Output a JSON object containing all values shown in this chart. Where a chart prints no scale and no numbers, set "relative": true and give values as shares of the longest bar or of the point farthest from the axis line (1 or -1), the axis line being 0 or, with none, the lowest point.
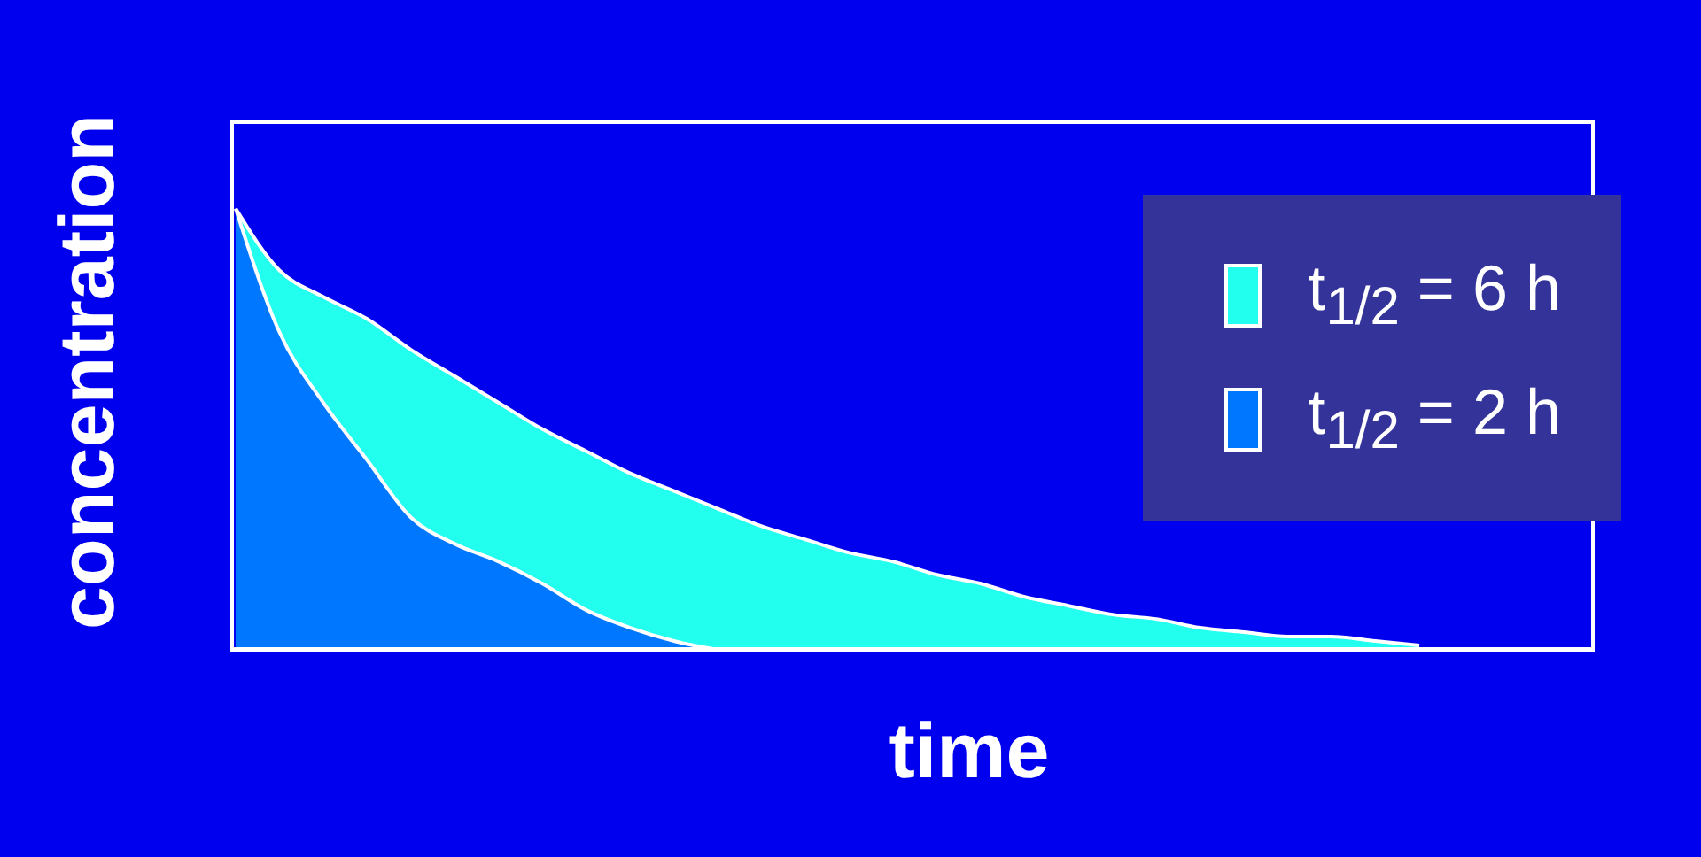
{
  "chart_data": {
    "type": "area",
    "xlabel": "time",
    "ylabel": "concentration",
    "relative": true,
    "legend": "top right",
    "categories": [
      null,
      null,
      null,
      null,
      null,
      null,
      null,
      null,
      null,
      null,
      null,
      null,
      null,
      null,
      null,
      null,
      null,
      null,
      null,
      null,
      null,
      null,
      null,
      null,
      null,
      null,
      null,
      null,
      null,
      null,
      null,
      null
    ],
    "series": [
      {
        "name": "t$_{1/2}$ = 6 h",
        "color": "#22ffee",
        "values": [
          1.0,
          0.86,
          0.8,
          0.75,
          0.68,
          0.62,
          0.56,
          0.5,
          0.45,
          0.4,
          0.36,
          0.32,
          0.28,
          0.25,
          0.22,
          0.2,
          0.17,
          0.15,
          0.12,
          0.1,
          0.08,
          0.07,
          0.05,
          0.04,
          0.03,
          0.03,
          0.02,
          0.01,
          null,
          null,
          null,
          null
        ]
      },
      {
        "name": "t$_{1/2}$ = 2 h",
        "color": "#0077ff",
        "values": [
          1.0,
          0.72,
          0.56,
          0.43,
          0.3,
          0.24,
          0.2,
          0.15,
          0.09,
          0.05,
          0.02,
          0.0,
          null,
          null,
          null,
          null,
          null,
          null,
          null,
          null,
          null,
          null,
          null,
          null,
          null,
          null,
          null,
          null,
          null,
          null,
          null,
          null
        ]
      }
    ]
  }
}
